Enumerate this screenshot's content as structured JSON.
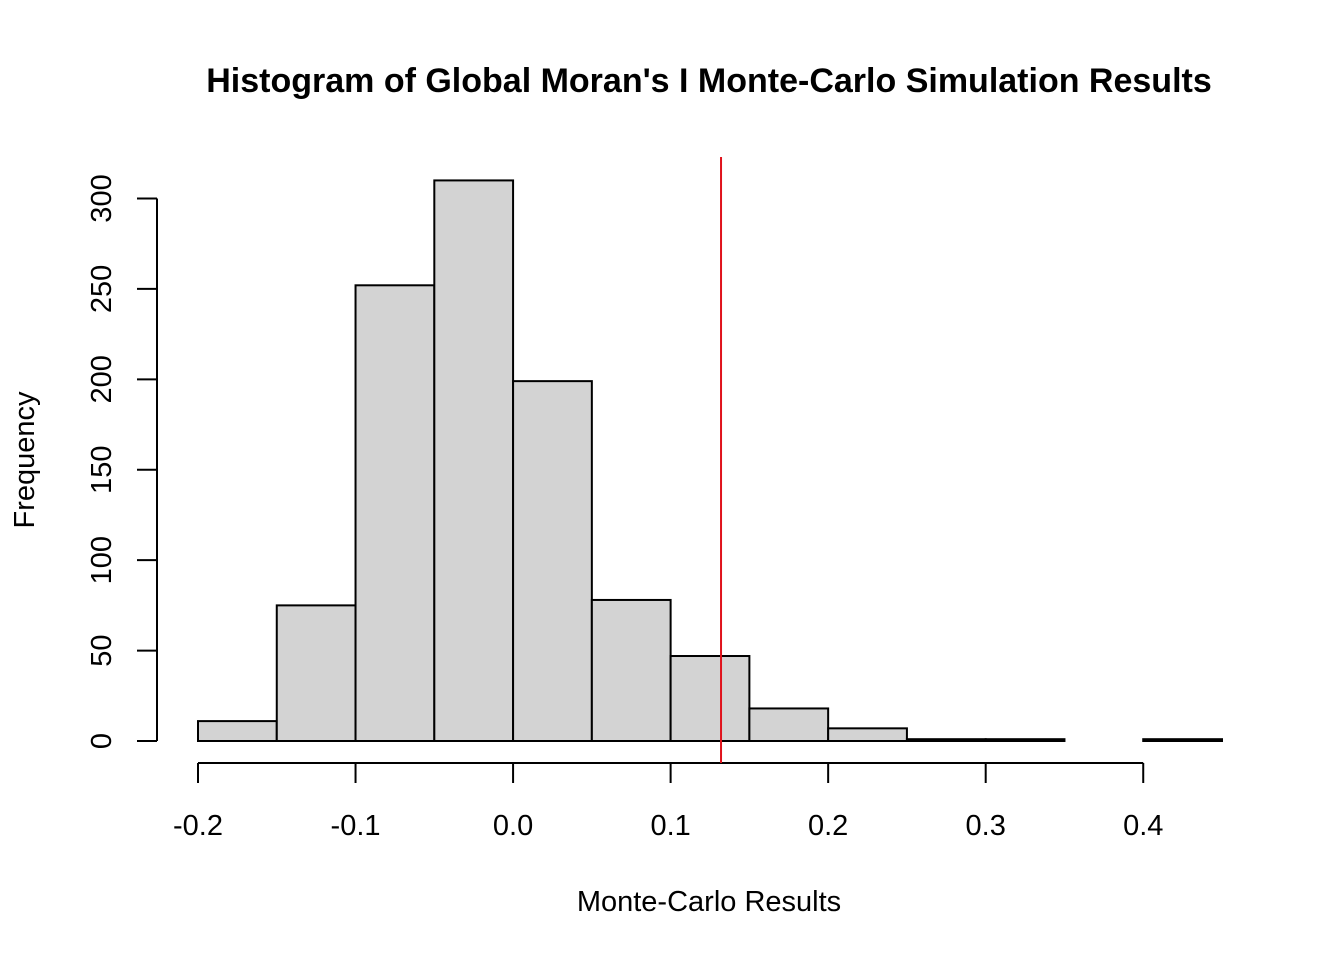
{
  "chart_data": {
    "type": "histogram",
    "title": "Histogram of Global Moran's I Monte-Carlo Simulation Results",
    "xlabel": "Monte-Carlo Results",
    "ylabel": "Frequency",
    "bin_edges": [
      -0.2,
      -0.15,
      -0.1,
      -0.05,
      0.0,
      0.05,
      0.1,
      0.15,
      0.2,
      0.25,
      0.3,
      0.35,
      0.4,
      0.45
    ],
    "counts": [
      11,
      75,
      252,
      310,
      199,
      78,
      47,
      18,
      7,
      1,
      1,
      0,
      1
    ],
    "xlim": [
      -0.2,
      0.45
    ],
    "ylim": [
      0,
      310
    ],
    "x_ticks": [
      -0.2,
      -0.1,
      0.0,
      0.1,
      0.2,
      0.3,
      0.4
    ],
    "x_tick_labels": [
      "-0.2",
      "-0.1",
      "0.0",
      "0.1",
      "0.2",
      "0.3",
      "0.4"
    ],
    "y_ticks": [
      0,
      50,
      100,
      150,
      200,
      250,
      300
    ],
    "y_tick_labels": [
      "0",
      "50",
      "100",
      "150",
      "200",
      "250",
      "300"
    ],
    "bar_fill": "#d3d3d3",
    "bar_stroke": "#000000",
    "reference_line": {
      "x": 0.132,
      "color": "#e0121b"
    },
    "grid": false,
    "legend": "none"
  }
}
